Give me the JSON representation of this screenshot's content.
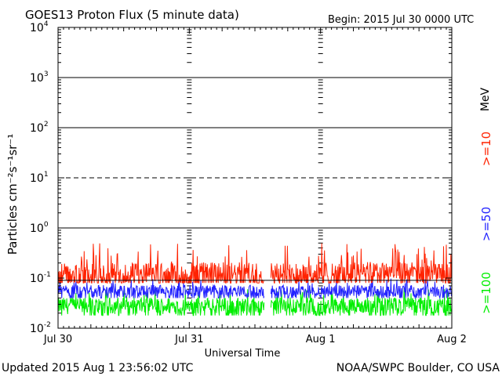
{
  "chart_data": {
    "type": "line",
    "title": "GOES13 Proton Flux (5 minute data)",
    "begin_label": "Begin: 2015 Jul 30 0000 UTC",
    "ylabel": "Particles cm⁻²s⁻¹sr⁻¹",
    "xlabel": "Universal Time",
    "y_scale": "log",
    "ylim": [
      0.01,
      10000
    ],
    "y_ticks": [
      {
        "value": 10000,
        "base": "10",
        "exp": "4"
      },
      {
        "value": 1000,
        "base": "10",
        "exp": "3"
      },
      {
        "value": 100,
        "base": "10",
        "exp": "2"
      },
      {
        "value": 10,
        "base": "10",
        "exp": "1"
      },
      {
        "value": 1,
        "base": "10",
        "exp": "0"
      },
      {
        "value": 0.1,
        "base": "10",
        "exp": "-1"
      },
      {
        "value": 0.01,
        "base": "10",
        "exp": "-2"
      }
    ],
    "x_ticks": [
      "Jul 30",
      "Jul 31",
      "Aug 1",
      "Aug 2"
    ],
    "x_range_days": [
      0,
      3
    ],
    "data_gap_days": [
      1.57,
      1.62
    ],
    "threshold_lines": [
      {
        "value": 1000,
        "style": "solid"
      },
      {
        "value": 100,
        "style": "solid"
      },
      {
        "value": 10,
        "style": "dashed"
      },
      {
        "value": 1,
        "style": "solid"
      }
    ],
    "mev_unit": "MeV",
    "series": [
      {
        "name": ">=10",
        "color": "#ff2200",
        "baseline": 0.12,
        "min": 0.08,
        "max": 0.5
      },
      {
        "name": ">=50",
        "color": "#2222ff",
        "baseline": 0.055,
        "min": 0.04,
        "max": 0.1
      },
      {
        "name": ">=100",
        "color": "#00ee00",
        "baseline": 0.028,
        "min": 0.018,
        "max": 0.065
      }
    ],
    "reference_line": {
      "value": 0.09,
      "color": "#000000"
    }
  },
  "footer": {
    "updated": "Updated 2015 Aug  1 23:56:02 UTC",
    "source": "NOAA/SWPC Boulder, CO USA"
  }
}
